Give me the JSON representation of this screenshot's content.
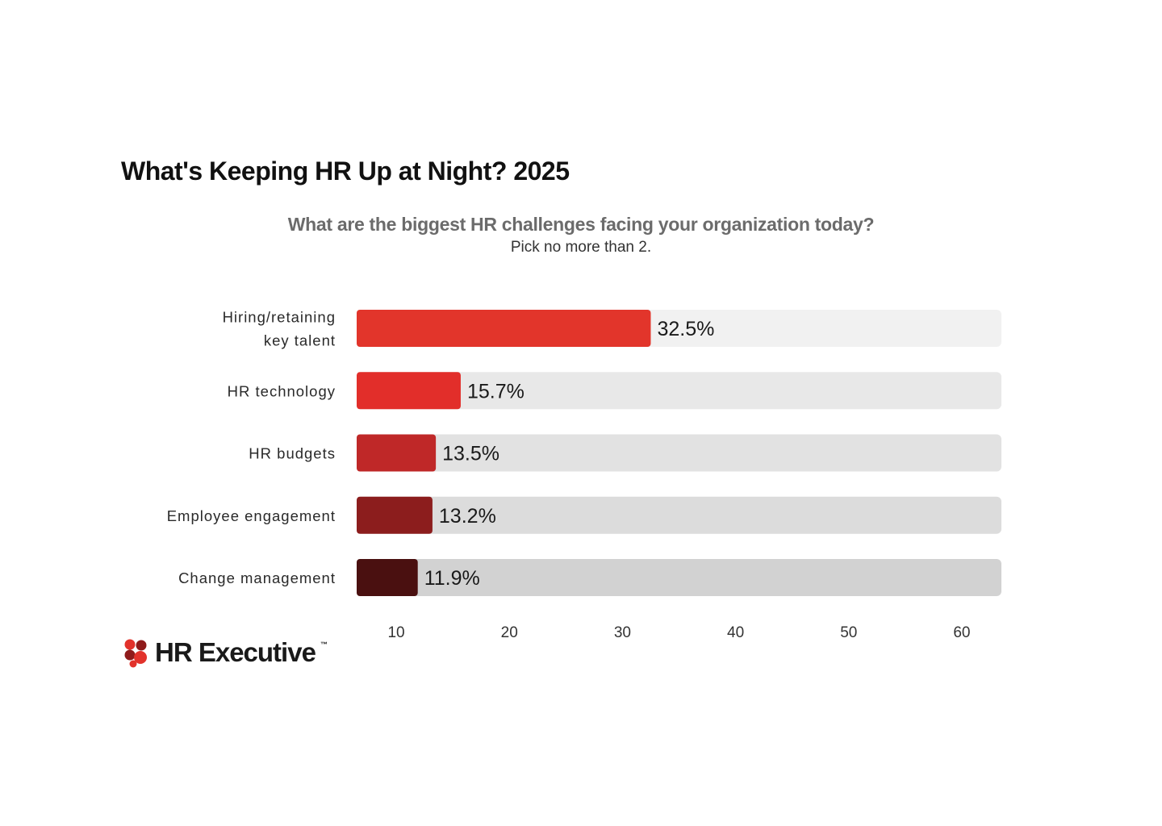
{
  "header": {
    "title": "What's Keeping HR Up at Night? 2025",
    "question": "What are the biggest HR challenges facing your organization today?",
    "instruction": "Pick no more than 2."
  },
  "brand": {
    "name": "HR Executive",
    "trademark": "™",
    "logo_icon": "cluster-of-circles-icon",
    "logo_colors": [
      "#e2322b",
      "#8f1b1b"
    ]
  },
  "chart_data": {
    "type": "bar",
    "orientation": "horizontal",
    "title": "What's Keeping HR Up at Night? 2025",
    "subtitle": "What are the biggest HR challenges facing your organization today?",
    "xlim": [
      6.5,
      63.5
    ],
    "x_ticks": [
      10,
      20,
      30,
      40,
      50,
      60
    ],
    "grid": false,
    "categories": [
      "Hiring/retaining key talent",
      "HR technology",
      "HR budgets",
      "Employee engagement",
      "Change management"
    ],
    "category_lines": [
      [
        "Hiring/retaining",
        "key talent"
      ],
      [
        "HR technology"
      ],
      [
        "HR budgets"
      ],
      [
        "Employee engagement"
      ],
      [
        "Change management"
      ]
    ],
    "values": [
      32.5,
      15.7,
      13.5,
      13.2,
      11.9
    ],
    "value_labels": [
      "32.5%",
      "15.7%",
      "13.5%",
      "13.2%",
      "11.9%"
    ],
    "bar_colors": [
      "#e2352b",
      "#e22e2a",
      "#bf2828",
      "#8c1d1d",
      "#4a1010"
    ],
    "track_colors": [
      "#f1f1f1",
      "#e8e8e8",
      "#e2e2e2",
      "#dcdcdc",
      "#d2d2d2"
    ]
  }
}
